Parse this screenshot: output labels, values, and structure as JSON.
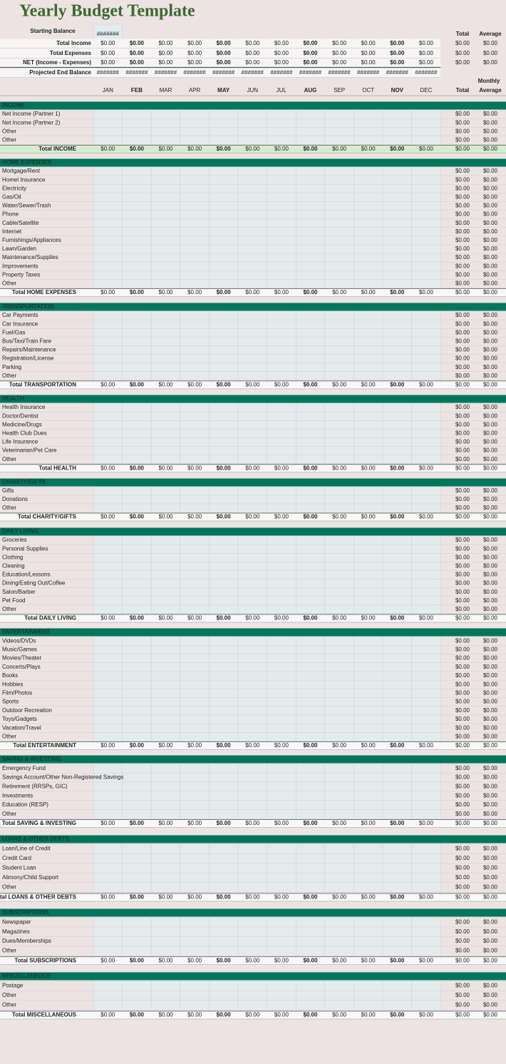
{
  "title": "Yearly Budget Template",
  "starting_balance": {
    "label": "Starting Balance",
    "value": "#######"
  },
  "summary_header": {
    "total": "Total",
    "average": "Average"
  },
  "summary": [
    {
      "label": "Total Income",
      "months": [
        "$0.00",
        "$0.00",
        "$0.00",
        "$0.00",
        "$0.00",
        "$0.00",
        "$0.00",
        "$0.00",
        "$0.00",
        "$0.00",
        "$0.00",
        "$0.00"
      ],
      "total": "$0.00",
      "average": "$0.00"
    },
    {
      "label": "Total Expenses",
      "months": [
        "$0.00",
        "$0.00",
        "$0.00",
        "$0.00",
        "$0.00",
        "$0.00",
        "$0.00",
        "$0.00",
        "$0.00",
        "$0.00",
        "$0.00",
        "$0.00"
      ],
      "total": "$0.00",
      "average": "$0.00"
    },
    {
      "label": "NET (Income - Expenses)",
      "months": [
        "$0.00",
        "$0.00",
        "$0.00",
        "$0.00",
        "$0.00",
        "$0.00",
        "$0.00",
        "$0.00",
        "$0.00",
        "$0.00",
        "$0.00",
        "$0.00"
      ],
      "total": "$0.00",
      "average": "$0.00"
    },
    {
      "label": "Projected End Balance",
      "months": [
        "#######",
        "#######",
        "#######",
        "#######",
        "#######",
        "#######",
        "#######",
        "#######",
        "#######",
        "#######",
        "#######",
        "#######"
      ]
    }
  ],
  "column_header": {
    "monthly": "Monthly",
    "months": [
      "JAN",
      "FEB",
      "MAR",
      "APR",
      "MAY",
      "JUN",
      "JUL",
      "AUG",
      "SEP",
      "OCT",
      "NOV",
      "DEC"
    ],
    "total": "Total",
    "average": "Average"
  },
  "sections": [
    {
      "title": "INCOME",
      "items": [
        [
          "Net Income  (Partner 1)",
          "$0.00",
          "$0.00"
        ],
        [
          "Net Income (Partner 2)",
          "$0.00",
          "$0.00"
        ],
        [
          "Other",
          "$0.00",
          "$0.00"
        ],
        [
          "Other",
          "$0.00",
          "$0.00"
        ]
      ],
      "total_row": {
        "label": "Total INCOME",
        "months": [
          "$0.00",
          "$0.00",
          "$0.00",
          "$0.00",
          "$0.00",
          "$0.00",
          "$0.00",
          "$0.00",
          "$0.00",
          "$0.00",
          "$0.00",
          "$0.00"
        ],
        "total": "$0.00",
        "average": "$0.00"
      }
    },
    {
      "title": "HOME EXPENSES",
      "items": [
        [
          "Mortgage/Rent",
          "$0.00",
          "$0.00"
        ],
        [
          "Homel Insurance",
          "$0.00",
          "$0.00"
        ],
        [
          "Electricity",
          "$0.00",
          "$0.00"
        ],
        [
          "Gas/Oil",
          "$0.00",
          "$0.00"
        ],
        [
          "Water/Sewer/Trash",
          "$0.00",
          "$0.00"
        ],
        [
          "Phone",
          "$0.00",
          "$0.00"
        ],
        [
          "Cable/Satellite",
          "$0.00",
          "$0.00"
        ],
        [
          "Internet",
          "$0.00",
          "$0.00"
        ],
        [
          "Furnishings/Appliances",
          "$0.00",
          "$0.00"
        ],
        [
          "Lawn/Garden",
          "$0.00",
          "$0.00"
        ],
        [
          "Maintenance/Supplies",
          "$0.00",
          "$0.00"
        ],
        [
          "Improvements",
          "$0.00",
          "$0.00"
        ],
        [
          "Property Taxes",
          "$0.00",
          "$0.00"
        ],
        [
          "Other",
          "$0.00",
          "$0.00"
        ]
      ],
      "total_row": {
        "label": "Total HOME EXPENSES",
        "months": [
          "$0.00",
          "$0.00",
          "$0.00",
          "$0.00",
          "$0.00",
          "$0.00",
          "$0.00",
          "$0.00",
          "$0.00",
          "$0.00",
          "$0.00",
          "$0.00"
        ],
        "total": "$0.00",
        "average": "$0.00"
      }
    },
    {
      "title": "TRANSPORTATION",
      "items": [
        [
          "Car Payments",
          "$0.00",
          "$0.00"
        ],
        [
          "Car Insurance",
          "$0.00",
          "$0.00"
        ],
        [
          "Fuel/Gas",
          "$0.00",
          "$0.00"
        ],
        [
          "Bus/Taxi/Train Fare",
          "$0.00",
          "$0.00"
        ],
        [
          "Repairs/Maintenance",
          "$0.00",
          "$0.00"
        ],
        [
          "Registration/License",
          "$0.00",
          "$0.00"
        ],
        [
          "Parking",
          "$0.00",
          "$0.00"
        ],
        [
          "Other",
          "$0.00",
          "$0.00"
        ]
      ],
      "total_row": {
        "label": "Total TRANSPORTATION",
        "months": [
          "$0.00",
          "$0.00",
          "$0.00",
          "$0.00",
          "$0.00",
          "$0.00",
          "$0.00",
          "$0.00",
          "$0.00",
          "$0.00",
          "$0.00",
          "$0.00"
        ],
        "total": "$0.00",
        "average": "$0.00"
      }
    },
    {
      "title": "HEALTH",
      "items": [
        [
          "Health Insurance",
          "$0.00",
          "$0.00"
        ],
        [
          "Doctor/Dentist",
          "$0.00",
          "$0.00"
        ],
        [
          "Medicine/Drugs",
          "$0.00",
          "$0.00"
        ],
        [
          "Health Club Dues",
          "$0.00",
          "$0.00"
        ],
        [
          "Life Insurance",
          "$0.00",
          "$0.00"
        ],
        [
          "Veterinarian/Pet Care",
          "$0.00",
          "$0.00"
        ],
        [
          "Other",
          "$0.00",
          "$0.00"
        ]
      ],
      "total_row": {
        "label": "Total HEALTH",
        "months": [
          "$0.00",
          "$0.00",
          "$0.00",
          "$0.00",
          "$0.00",
          "$0.00",
          "$0.00",
          "$0.00",
          "$0.00",
          "$0.00",
          "$0.00",
          "$0.00"
        ],
        "total": "$0.00",
        "average": "$0.00"
      }
    },
    {
      "title": "CHARITY/GIFTS",
      "items": [
        [
          "Gifts",
          "$0.00",
          "$0.00"
        ],
        [
          "Donations",
          "$0.00",
          "$0.00"
        ],
        [
          "Other",
          "$0.00",
          "$0.00"
        ]
      ],
      "total_row": {
        "label": "Total CHARITY/GIFTS",
        "months": [
          "$0.00",
          "$0.00",
          "$0.00",
          "$0.00",
          "$0.00",
          "$0.00",
          "$0.00",
          "$0.00",
          "$0.00",
          "$0.00",
          "$0.00",
          "$0.00"
        ],
        "total": "$0.00",
        "average": "$0.00"
      }
    },
    {
      "title": "DAILY LIVING",
      "items": [
        [
          "Groceries",
          "$0.00",
          "$0.00"
        ],
        [
          "Personal Supplies",
          "$0.00",
          "$0.00"
        ],
        [
          "Clothing",
          "$0.00",
          "$0.00"
        ],
        [
          "Cleaning",
          "$0.00",
          "$0.00"
        ],
        [
          "Education/Lessons",
          "$0.00",
          "$0.00"
        ],
        [
          "Dining/Eating Out/Coffee",
          "$0.00",
          "$0.00"
        ],
        [
          "Salon/Barber",
          "$0.00",
          "$0.00"
        ],
        [
          "Pet Food",
          "$0.00",
          "$0.00"
        ],
        [
          "Other",
          "$0.00",
          "$0.00"
        ]
      ],
      "total_row": {
        "label": "Total DAILY LIVING",
        "months": [
          "$0.00",
          "$0.00",
          "$0.00",
          "$0.00",
          "$0.00",
          "$0.00",
          "$0.00",
          "$0.00",
          "$0.00",
          "$0.00",
          "$0.00",
          "$0.00"
        ],
        "total": "$0.00",
        "average": "$0.00"
      }
    },
    {
      "title": "ENTERTAINMENT",
      "items": [
        [
          "Videos/DVDs",
          "$0.00",
          "$0.00"
        ],
        [
          "Music/Games",
          "$0.00",
          "$0.00"
        ],
        [
          "Movies/Theater",
          "$0.00",
          "$0.00"
        ],
        [
          "Concerts/Plays",
          "$0.00",
          "$0.00"
        ],
        [
          "Books",
          "$0.00",
          "$0.00"
        ],
        [
          "Hobbies",
          "$0.00",
          "$0.00"
        ],
        [
          "Film/Photos",
          "$0.00",
          "$0.00"
        ],
        [
          "Sports",
          "$0.00",
          "$0.00"
        ],
        [
          "Outdoor Recreation",
          "$0.00",
          "$0.00"
        ],
        [
          "Toys/Gadgets",
          "$0.00",
          "$0.00"
        ],
        [
          "Vacation/Travel",
          "$0.00",
          "$0.00"
        ],
        [
          "Other",
          "$0.00",
          "$0.00"
        ]
      ],
      "total_row": {
        "label": "Total ENTERTAINMENT",
        "months": [
          "$0.00",
          "$0.00",
          "$0.00",
          "$0.00",
          "$0.00",
          "$0.00",
          "$0.00",
          "$0.00",
          "$0.00",
          "$0.00",
          "$0.00",
          "$0.00"
        ],
        "total": "$0.00",
        "average": "$0.00"
      }
    },
    {
      "title": "SAVING & INVESTING",
      "items": [
        [
          "Emergency Fund",
          "$0.00",
          "$0.00"
        ],
        [
          "Savings Account/Other Non-Registered Savings",
          "$0.00",
          "$0.00"
        ],
        [
          "Retirement (RRSPs, GIC)",
          "$0.00",
          "$0.00"
        ],
        [
          "Investments",
          "$0.00",
          "$0.00"
        ],
        [
          "Education (RESP)",
          "$0.00",
          "$0.00"
        ],
        [
          "Other",
          "$0.00",
          "$0.00"
        ]
      ],
      "total_row": {
        "label": "Total SAVING & INVESTING",
        "months": [
          "$0.00",
          "$0.00",
          "$0.00",
          "$0.00",
          "$0.00",
          "$0.00",
          "$0.00",
          "$0.00",
          "$0.00",
          "$0.00",
          "$0.00",
          "$0.00"
        ],
        "total": "$0.00",
        "average": "$0.00"
      }
    },
    {
      "title": "LOANS & OTHER DEBTS",
      "items": [
        [
          "Loan/Line of Credit",
          "$0.00",
          "$0.00"
        ],
        [
          "Credit Card",
          "$0.00",
          "$0.00"
        ],
        [
          "Student Loan",
          "$0.00",
          "$0.00"
        ],
        [
          "Alimony/Child Support",
          "$0.00",
          "$0.00"
        ],
        [
          "Other",
          "$0.00",
          "$0.00"
        ]
      ],
      "total_row": {
        "label": "Total LOANS & OTHER DEBTS",
        "months": [
          "$0.00",
          "$0.00",
          "$0.00",
          "$0.00",
          "$0.00",
          "$0.00",
          "$0.00",
          "$0.00",
          "$0.00",
          "$0.00",
          "$0.00",
          "$0.00"
        ],
        "total": "$0.00",
        "average": "$0.00"
      }
    },
    {
      "title": "SUBSCRIPTIONS",
      "items": [
        [
          "Newspaper",
          "$0.00",
          "$0.00"
        ],
        [
          "Magazines",
          "$0.00",
          "$0.00"
        ],
        [
          "Dues/Memberships",
          "$0.00",
          "$0.00"
        ],
        [
          "Other",
          "$0.00",
          "$0.00"
        ]
      ],
      "total_row": {
        "label": "Total SUBSCRIPTIONS",
        "months": [
          "$0.00",
          "$0.00",
          "$0.00",
          "$0.00",
          "$0.00",
          "$0.00",
          "$0.00",
          "$0.00",
          "$0.00",
          "$0.00",
          "$0.00",
          "$0.00"
        ],
        "total": "$0.00",
        "average": "$0.00"
      }
    },
    {
      "title": "MISCELLANEOUS",
      "items": [
        [
          "Postage",
          "$0.00",
          "$0.00"
        ],
        [
          "Other",
          "$0.00",
          "$0.00"
        ],
        [
          "Other",
          "$0.00",
          "$0.00"
        ]
      ],
      "total_row": {
        "label": "Total MISCELLANEOUS",
        "months": [
          "$0.00",
          "$0.00",
          "$0.00",
          "$0.00",
          "$0.00",
          "$0.00",
          "$0.00",
          "$0.00",
          "$0.00",
          "$0.00",
          "$0.00",
          "$0.00"
        ],
        "total": "$0.00",
        "average": "$0.00"
      }
    }
  ]
}
